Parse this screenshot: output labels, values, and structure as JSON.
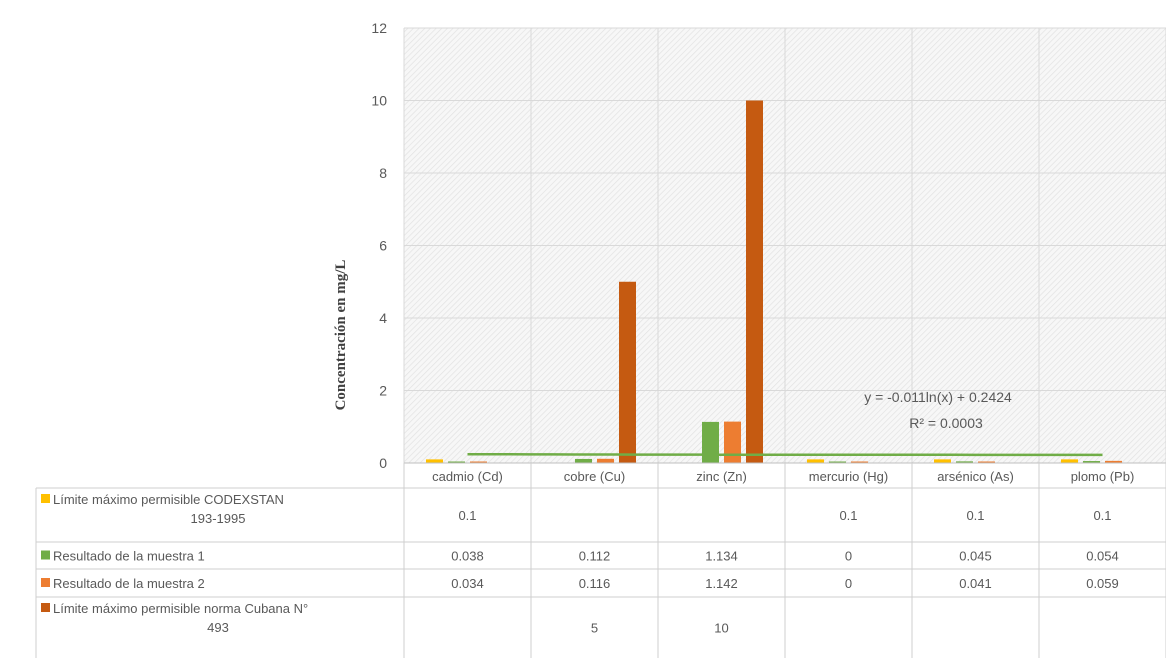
{
  "chart_data": {
    "type": "bar",
    "ylabel": "Concentración en mg/L",
    "ylim": [
      0,
      12
    ],
    "yticks": [
      "0",
      "2",
      "4",
      "6",
      "8",
      "10",
      "12"
    ],
    "grid": true,
    "legend": "data-table",
    "categories": [
      "cadmio (Cd)",
      "cobre (Cu)",
      "zinc (Zn)",
      "mercurio (Hg)",
      "arsénico (As)",
      "plomo (Pb)"
    ],
    "series": [
      {
        "name": "Límite máximo permisible CODEXSTAN 193-1995",
        "color": "#ffc000",
        "values": [
          0.1,
          null,
          null,
          0.1,
          0.1,
          0.1
        ],
        "labels": [
          "0.1",
          "",
          "",
          "0.1",
          "0.1",
          "0.1"
        ]
      },
      {
        "name": "Resultado de la muestra 1",
        "color": "#70ad47",
        "values": [
          0.038,
          0.112,
          1.134,
          0,
          0.045,
          0.054
        ],
        "labels": [
          "0.038",
          "0.112",
          "1.134",
          "0",
          "0.045",
          "0.054"
        ]
      },
      {
        "name": "Resultado de la muestra 2",
        "color": "#ed7d31",
        "values": [
          0.034,
          0.116,
          1.142,
          0,
          0.041,
          0.059
        ],
        "labels": [
          "0.034",
          "0.116",
          "1.142",
          "0",
          "0.041",
          "0.059"
        ]
      },
      {
        "name": "Límite máximo permisible norma Cubana N° 493",
        "color": "#c55a11",
        "values": [
          null,
          5,
          10,
          null,
          null,
          null
        ],
        "labels": [
          "",
          "5",
          "10",
          "",
          "",
          ""
        ]
      }
    ],
    "trendline": {
      "color": "#70ad47",
      "equation": "y = -0.011ln(x) + 0.2424",
      "r2": "R² = 0.0003",
      "start_value": 0.2424,
      "end_value": 0.2227
    }
  }
}
